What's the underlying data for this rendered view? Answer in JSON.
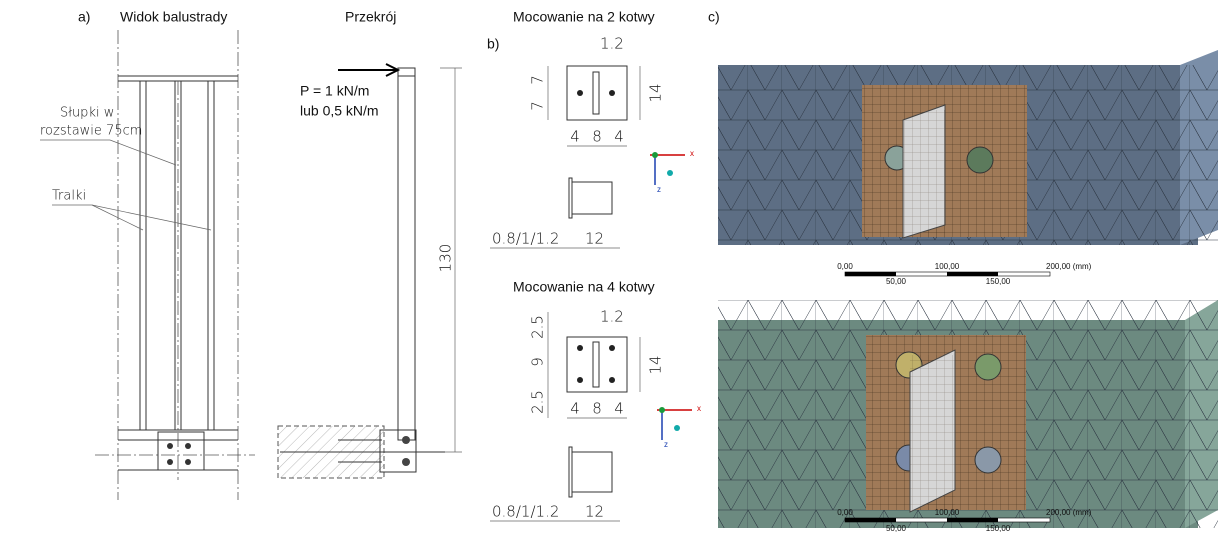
{
  "panel_a": {
    "label": "a)",
    "view_title": "Widok balustrady",
    "section_title": "Przekrój",
    "posts_label": [
      "Słupki w",
      "rozstawie 75cm"
    ],
    "balusters_label": "Tralki",
    "load": [
      "P = 1 kN/m",
      "lub 0,5 kN/m"
    ],
    "height": "130"
  },
  "panel_b": {
    "label": "b)",
    "fixings": [
      {
        "title": "Mocowanie na 2 kotwy",
        "plate_thickness": "1.2",
        "vertical_dims": [
          "7",
          "7"
        ],
        "height": "14",
        "horizontal_dims": [
          "4",
          "8",
          "4"
        ],
        "thickness": "0.8/1/1.2",
        "depth": "12",
        "axes": [
          "x",
          "z"
        ]
      },
      {
        "title": "Mocowanie na 4 kotwy",
        "plate_thickness": "1.2",
        "vertical_dims": [
          "2.5",
          "9",
          "2.5"
        ],
        "height": "14",
        "horizontal_dims": [
          "4",
          "8",
          "4"
        ],
        "thickness": "0.8/1/1.2",
        "depth": "12",
        "axes": [
          "x",
          "z"
        ]
      }
    ]
  },
  "panel_c": {
    "label": "c)",
    "scale_bars": [
      {
        "top": [
          "0,00",
          "100,00",
          "200,00 (mm)"
        ],
        "bottom": [
          "50,00",
          "150,00"
        ]
      },
      {
        "top": [
          "0,00",
          "100,00",
          "200,00 (mm)"
        ],
        "bottom": [
          "50,00",
          "150,00"
        ]
      }
    ]
  }
}
